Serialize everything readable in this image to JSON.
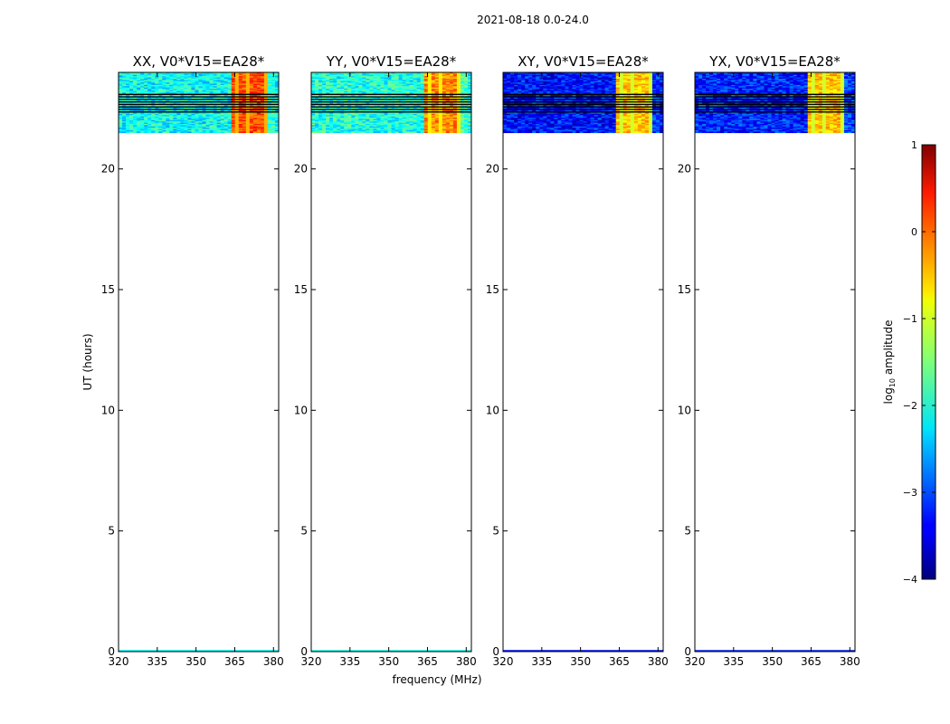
{
  "chart_data": {
    "type": "heatmap",
    "title": "2021-08-18 0.0-24.0",
    "xlabel": "frequency (MHz)",
    "ylabel": "UT (hours)",
    "xlim": [
      320,
      382
    ],
    "ylim": [
      0,
      24
    ],
    "x_ticks": [
      320,
      335,
      350,
      365,
      380
    ],
    "y_ticks": [
      0,
      5,
      10,
      15,
      20
    ],
    "data_time_range_hours": [
      21.5,
      24.0
    ],
    "colorbar": {
      "label_prefix": "log",
      "label_sub": "10",
      "label_suffix": " amplitude",
      "range": [
        -4,
        1
      ],
      "ticks": [
        -4,
        -3,
        -2,
        -1,
        0,
        1
      ],
      "tick_labels": [
        "−4",
        "−3",
        "−2",
        "−1",
        "0",
        "1"
      ],
      "colormap": "jet"
    },
    "panels": [
      {
        "title": "XX, V0*V15=EA28*",
        "base_level": -2.1,
        "high_band_level": 0.0
      },
      {
        "title": "YY, V0*V15=EA28*",
        "base_level": -2.0,
        "high_band_level": -0.3
      },
      {
        "title": "XY, V0*V15=EA28*",
        "base_level": -3.3,
        "high_band_level": -0.6
      },
      {
        "title": "YX, V0*V15=EA28*",
        "base_level": -3.2,
        "high_band_level": -0.6
      }
    ]
  }
}
